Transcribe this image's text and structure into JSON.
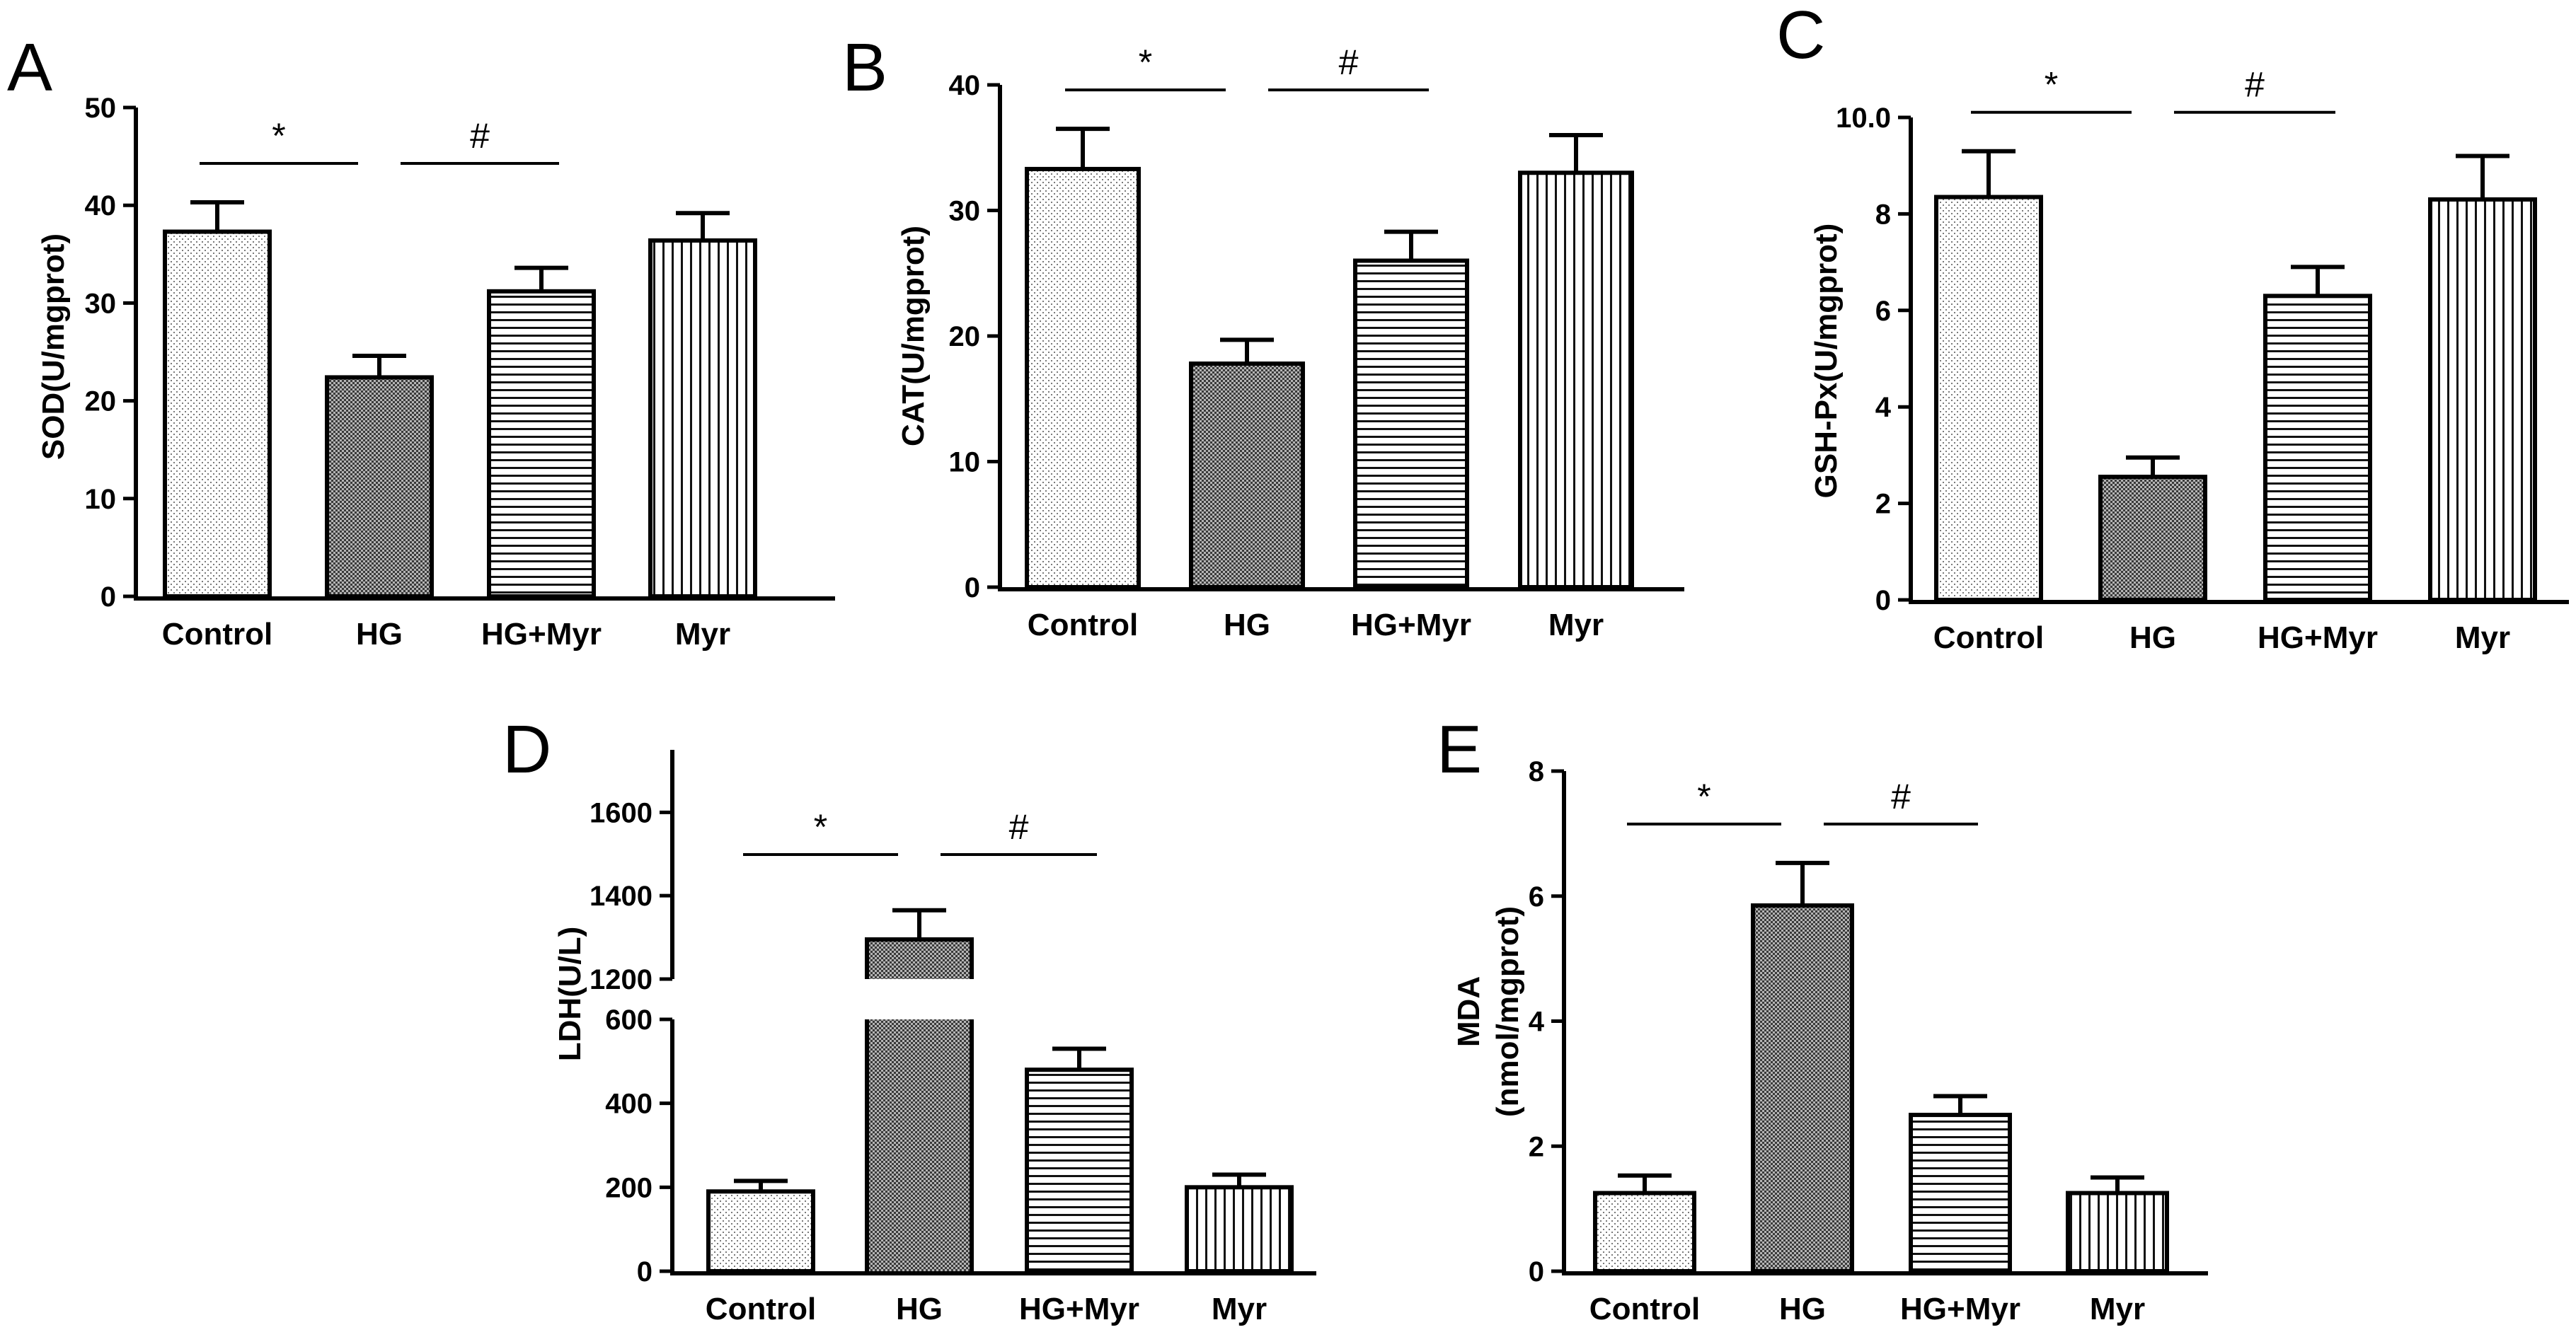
{
  "figure": {
    "panels": [
      {
        "id": "A",
        "letter": "A",
        "ylabel": "SOD(U/mgprot)",
        "sig": [
          "*",
          "#"
        ]
      },
      {
        "id": "B",
        "letter": "B",
        "ylabel": "CAT(U/mgprot)",
        "sig": [
          "*",
          "#"
        ]
      },
      {
        "id": "C",
        "letter": "C",
        "ylabel": "GSH-Px(U/mgprot)",
        "sig": [
          "*",
          "#"
        ]
      },
      {
        "id": "D",
        "letter": "D",
        "ylabel": "LDH(U/L)",
        "sig": [
          "*",
          "#"
        ]
      },
      {
        "id": "E",
        "letter": "E",
        "ylabel_lines": [
          "MDA",
          "(nmol/mgprot)"
        ],
        "sig": [
          "*",
          "#"
        ]
      }
    ]
  },
  "chart_data": [
    {
      "panel": "A",
      "type": "bar",
      "categories": [
        "Control",
        "HG",
        "HG+Myr",
        "Myr"
      ],
      "values": [
        37.3,
        22.4,
        31.2,
        36.4
      ],
      "errors": [
        3.0,
        2.2,
        2.4,
        2.8
      ],
      "ylabel": "SOD(U/mgprot)",
      "ylim": [
        0,
        50
      ],
      "yticks": [
        0,
        10,
        20,
        30,
        40,
        50
      ],
      "significance": [
        {
          "from": 0,
          "to": 1,
          "symbol": "*"
        },
        {
          "from": 1,
          "to": 2,
          "symbol": "#"
        }
      ]
    },
    {
      "panel": "B",
      "type": "bar",
      "categories": [
        "Control",
        "HG",
        "HG+Myr",
        "Myr"
      ],
      "values": [
        33.3,
        17.8,
        26.0,
        33.0
      ],
      "errors": [
        3.2,
        1.9,
        2.3,
        3.0
      ],
      "ylabel": "CAT(U/mgprot)",
      "ylim": [
        0,
        40
      ],
      "yticks": [
        0,
        10,
        20,
        30,
        40
      ],
      "significance": [
        {
          "from": 0,
          "to": 1,
          "symbol": "*"
        },
        {
          "from": 1,
          "to": 2,
          "symbol": "#"
        }
      ]
    },
    {
      "panel": "C",
      "type": "bar",
      "categories": [
        "Control",
        "HG",
        "HG+Myr",
        "Myr"
      ],
      "values": [
        8.35,
        2.55,
        6.3,
        8.3
      ],
      "errors": [
        0.95,
        0.4,
        0.6,
        0.9
      ],
      "ylabel": "GSH-Px(U/mgprot)",
      "ylim": [
        0,
        10
      ],
      "yticks": [
        0,
        2,
        4,
        6,
        8,
        10
      ],
      "ytick_labels": [
        "0",
        "2",
        "4",
        "6",
        "8",
        "10.0"
      ],
      "significance": [
        {
          "from": 0,
          "to": 1,
          "symbol": "*"
        },
        {
          "from": 1,
          "to": 2,
          "symbol": "#"
        }
      ]
    },
    {
      "panel": "D",
      "type": "bar",
      "broken_axis": true,
      "categories": [
        "Control",
        "HG",
        "HG+Myr",
        "Myr"
      ],
      "values": [
        190,
        1295,
        480,
        200
      ],
      "errors": [
        25,
        70,
        50,
        30
      ],
      "ylabel": "LDH(U/L)",
      "segments": [
        {
          "range": [
            0,
            600
          ],
          "ticks": [
            0,
            200,
            400,
            600
          ]
        },
        {
          "range": [
            1200,
            1750
          ],
          "ticks": [
            1200,
            1400,
            1600
          ]
        }
      ],
      "significance": [
        {
          "from": 0,
          "to": 1,
          "symbol": "*"
        },
        {
          "from": 1,
          "to": 2,
          "symbol": "#"
        }
      ]
    },
    {
      "panel": "E",
      "type": "bar",
      "categories": [
        "Control",
        "HG",
        "HG+Myr",
        "Myr"
      ],
      "values": [
        1.25,
        5.85,
        2.5,
        1.25
      ],
      "errors": [
        0.28,
        0.68,
        0.3,
        0.25
      ],
      "ylabel": "MDA (nmol/mgprot)",
      "ylim": [
        0,
        8
      ],
      "yticks": [
        0,
        2,
        4,
        6,
        8
      ],
      "significance": [
        {
          "from": 0,
          "to": 1,
          "symbol": "*"
        },
        {
          "from": 1,
          "to": 2,
          "symbol": "#"
        }
      ]
    }
  ]
}
